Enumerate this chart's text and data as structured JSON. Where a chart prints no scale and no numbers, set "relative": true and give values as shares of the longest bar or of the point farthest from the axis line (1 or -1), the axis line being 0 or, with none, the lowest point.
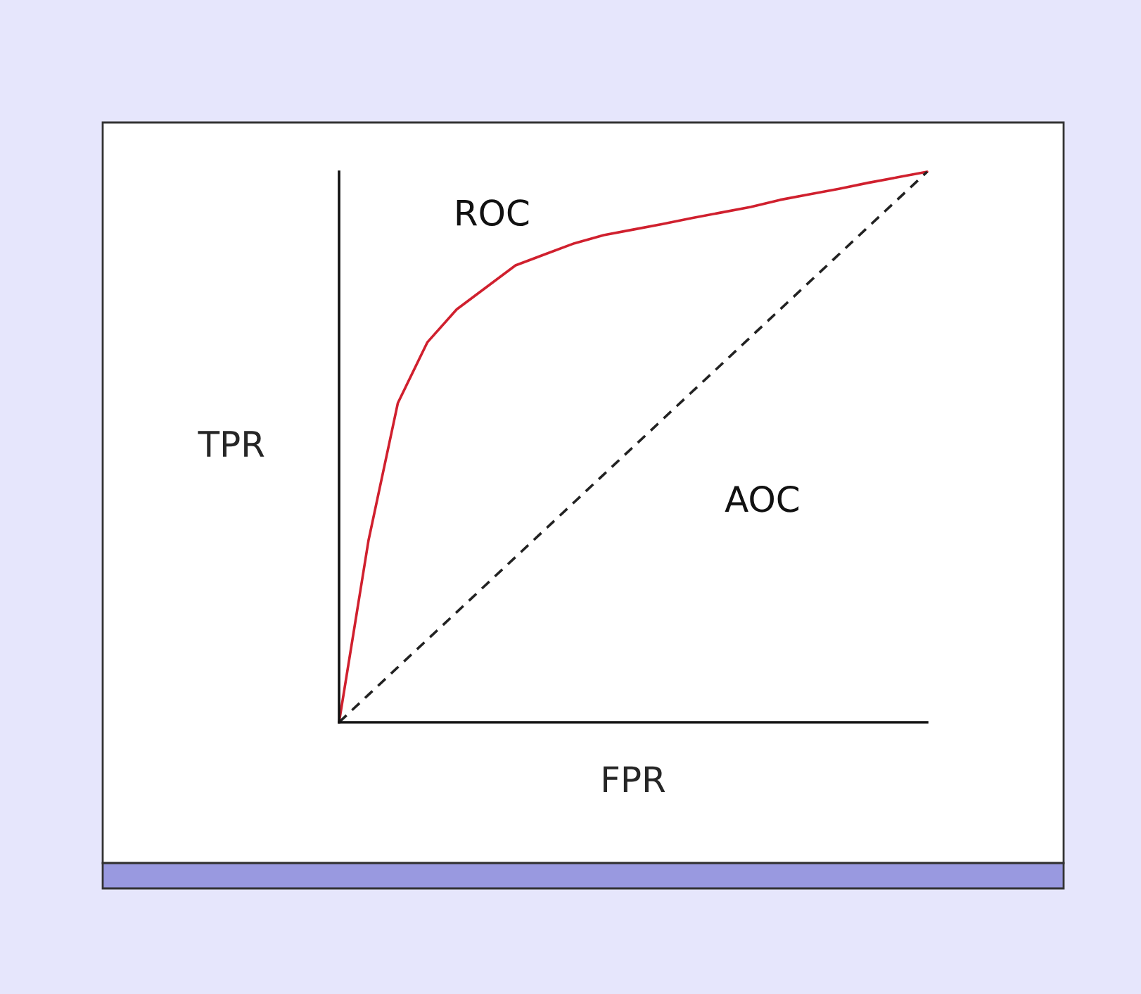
{
  "chart_data": {
    "type": "line",
    "relative": true,
    "xlabel": "FPR",
    "ylabel": "TPR",
    "tick_labels": false,
    "legend": false,
    "marker": "none",
    "categories": [
      null,
      null,
      null,
      null,
      null,
      null,
      null,
      null,
      null,
      null,
      null,
      null,
      null,
      null,
      null,
      null,
      null,
      null,
      null,
      null,
      null
    ],
    "series": [
      {
        "name": "ROC",
        "color": "#d0202e",
        "line_style": "solid",
        "values": [
          0,
          0.33,
          0.58,
          0.69,
          0.75,
          0.79,
          0.83,
          0.85,
          0.87,
          0.885,
          0.895,
          0.905,
          0.916,
          0.926,
          0.936,
          0.949,
          0.959,
          0.969,
          0.98,
          0.99,
          1
        ]
      },
      {
        "color": "#222222",
        "line_style": "dashed",
        "values": [
          0,
          0.05,
          0.1,
          0.15,
          0.2,
          0.25,
          0.3,
          0.35,
          0.4,
          0.45,
          0.5,
          0.55,
          0.6,
          0.65,
          0.7,
          0.75,
          0.8,
          0.85,
          0.9,
          0.95,
          1
        ]
      }
    ],
    "annotations": [
      "AOC"
    ]
  }
}
